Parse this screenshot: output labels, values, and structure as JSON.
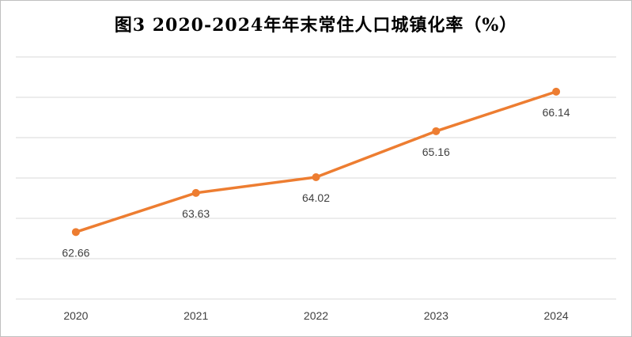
{
  "chart_data": {
    "type": "line",
    "title": "图3 2020-2024年年末常住人口城镇化率（%）",
    "xlabel": "",
    "ylabel": "",
    "categories": [
      "2020",
      "2021",
      "2022",
      "2023",
      "2024"
    ],
    "series": [
      {
        "values": [
          62.66,
          63.63,
          64.02,
          65.16,
          66.14
        ]
      }
    ],
    "ylim": [
      61,
      67
    ],
    "grid": true,
    "legend": "none",
    "line_color": "#ed7d31"
  }
}
